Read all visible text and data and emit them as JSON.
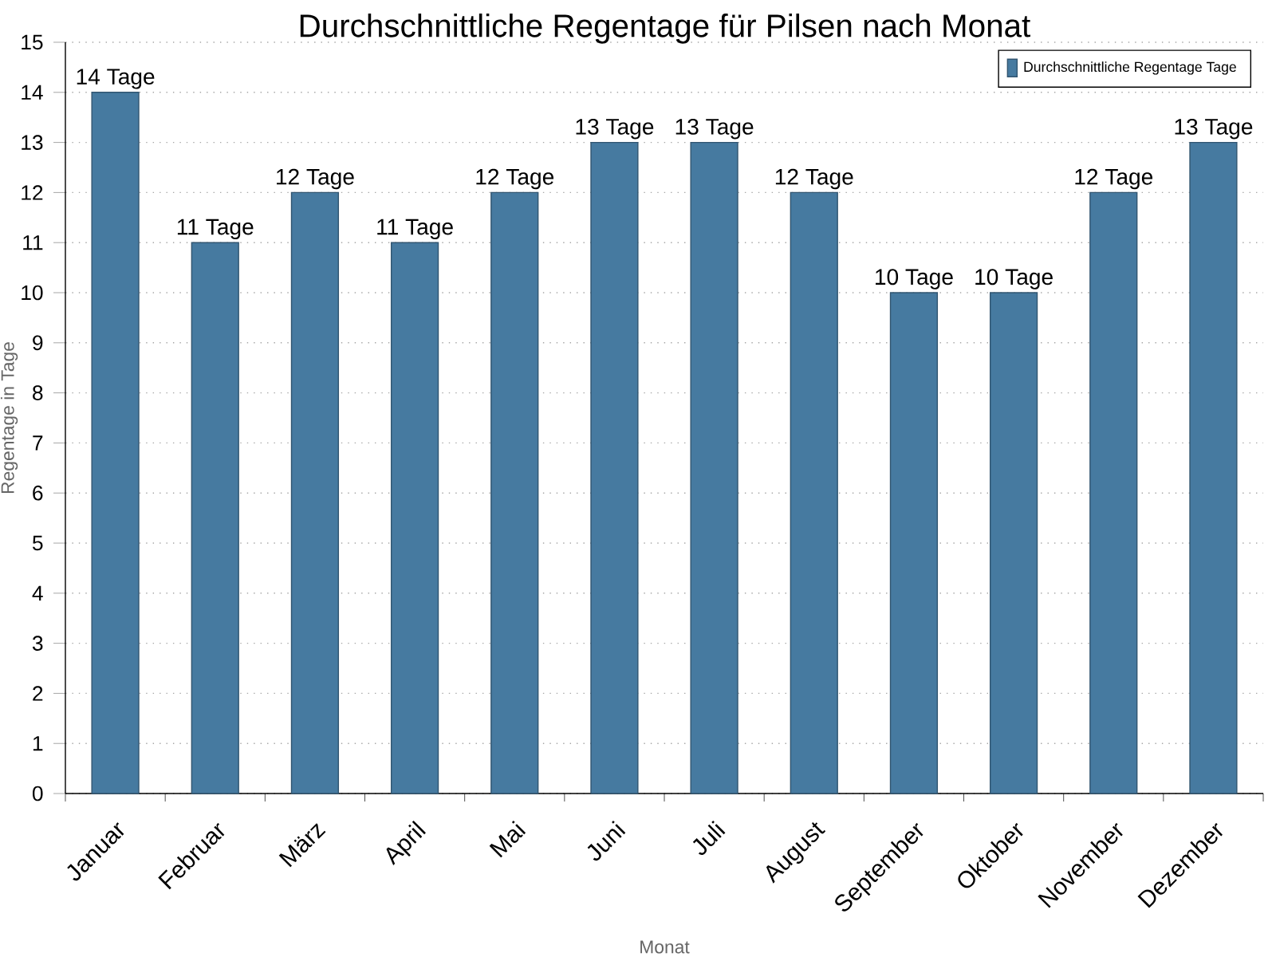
{
  "chart_data": {
    "type": "bar",
    "title": "Durchschnittliche Regentage für Pilsen nach Monat",
    "xlabel": "Monat",
    "ylabel": "Regentage in Tage",
    "categories": [
      "Januar",
      "Februar",
      "März",
      "April",
      "Mai",
      "Juni",
      "Juli",
      "August",
      "September",
      "Oktober",
      "November",
      "Dezember"
    ],
    "series": [
      {
        "name": "Durchschnittliche Regentage Tage",
        "color": "#467aa0",
        "values": [
          14,
          11,
          12,
          11,
          12,
          13,
          13,
          12,
          10,
          10,
          12,
          13
        ],
        "value_labels": [
          "14 Tage",
          "11 Tage",
          "12 Tage",
          "11 Tage",
          "12 Tage",
          "13 Tage",
          "13 Tage",
          "12 Tage",
          "10 Tage",
          "10 Tage",
          "12 Tage",
          "13 Tage"
        ]
      }
    ],
    "ylim": [
      0,
      15
    ],
    "yticks": [
      0,
      1,
      2,
      3,
      4,
      5,
      6,
      7,
      8,
      9,
      10,
      11,
      12,
      13,
      14,
      15
    ],
    "grid": "y",
    "legend": "top right"
  }
}
